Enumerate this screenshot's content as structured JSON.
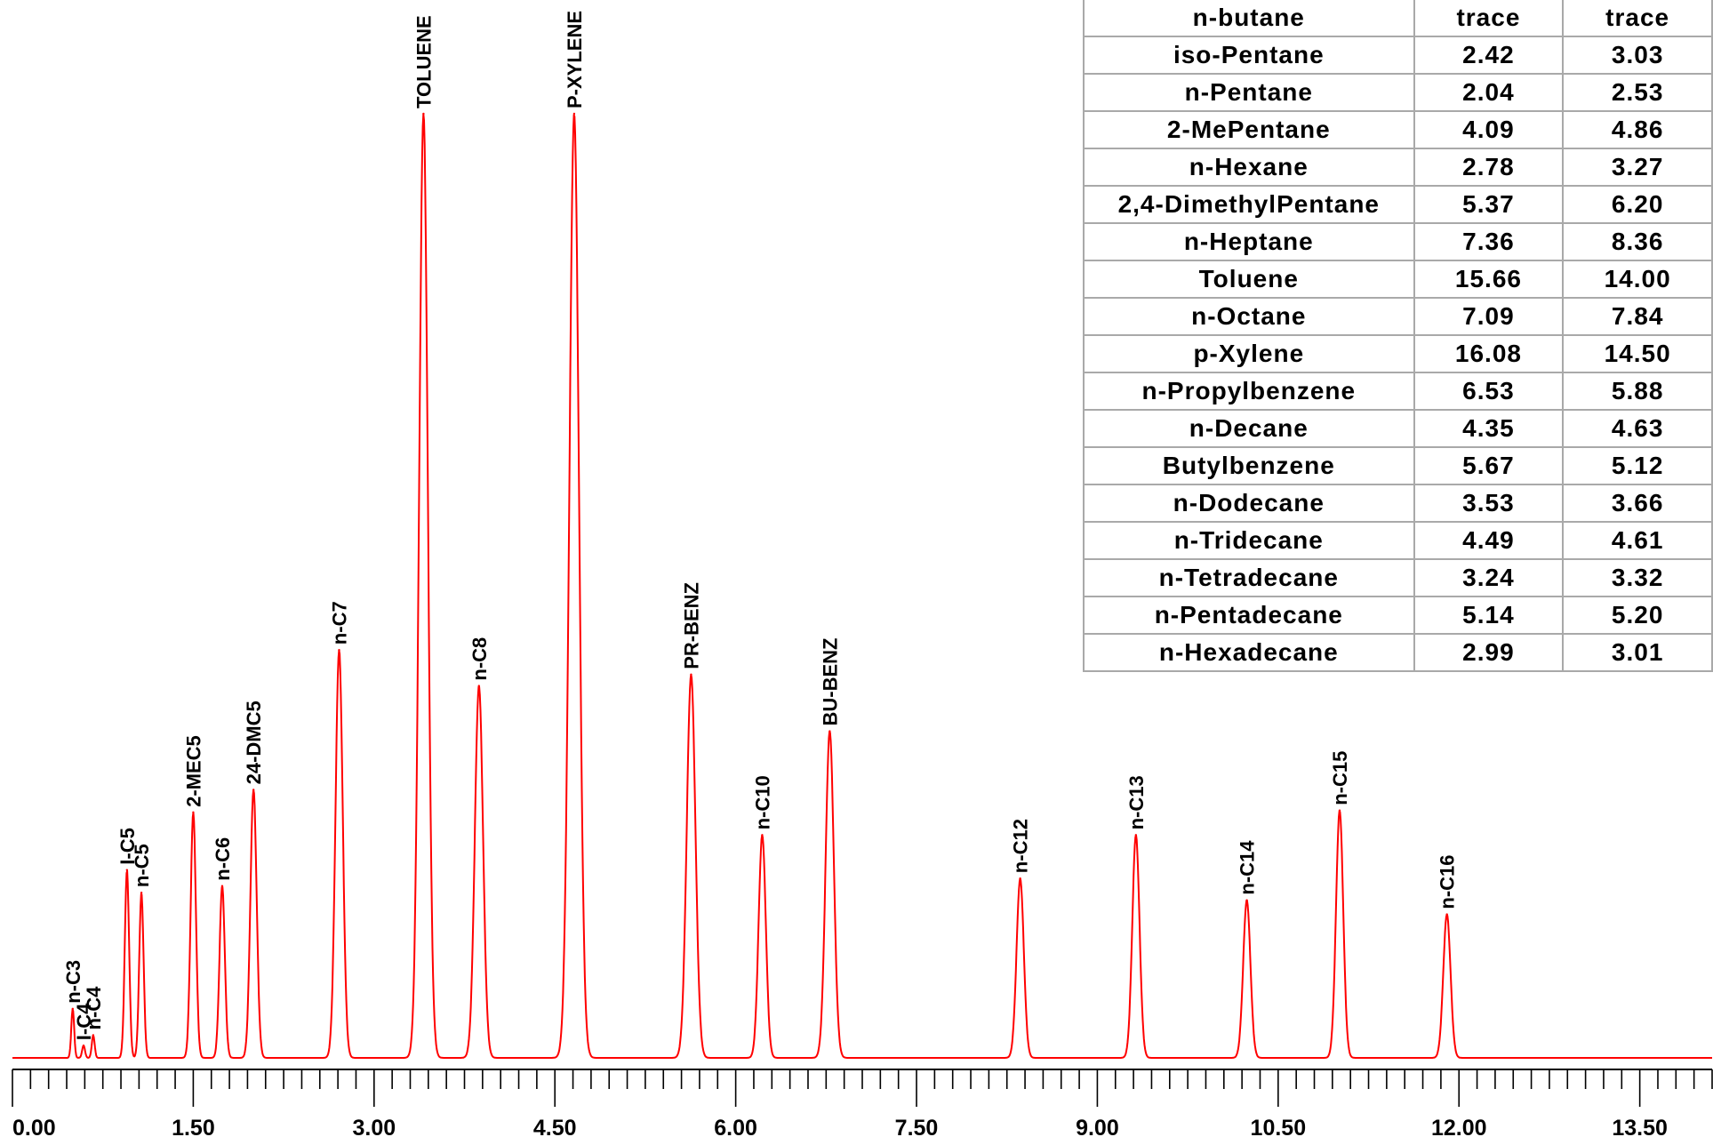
{
  "chart_data": {
    "type": "line",
    "xlim": [
      0,
      14.1
    ],
    "x_major_ticks": [
      0,
      1.5,
      3.0,
      4.5,
      6.0,
      7.5,
      9.0,
      10.5,
      12.0,
      13.5
    ],
    "x_tick_labels": [
      "0.00",
      "1.50",
      "3.00",
      "4.50",
      "6.00",
      "7.50",
      "9.00",
      "10.50",
      "12.00",
      "13.50"
    ],
    "x_minor_step": 0.15,
    "ylim": [
      0,
      100
    ],
    "line_color": "#ff0000",
    "peaks": [
      {
        "label": "n-C3",
        "x": 0.5,
        "height": 5.2,
        "width": 0.012
      },
      {
        "label": "I-C4",
        "x": 0.59,
        "height": 1.3,
        "width": 0.012
      },
      {
        "label": "n-C4",
        "x": 0.67,
        "height": 2.4,
        "width": 0.012
      },
      {
        "label": "I-C5",
        "x": 0.95,
        "height": 19.9,
        "width": 0.018
      },
      {
        "label": "n-C5",
        "x": 1.07,
        "height": 17.5,
        "width": 0.018
      },
      {
        "label": "2-MEC5",
        "x": 1.5,
        "height": 26.0,
        "width": 0.022
      },
      {
        "label": "n-C6",
        "x": 1.74,
        "height": 18.2,
        "width": 0.022
      },
      {
        "label": "24-DMC5",
        "x": 2.0,
        "height": 28.4,
        "width": 0.026
      },
      {
        "label": "n-C7",
        "x": 2.71,
        "height": 43.2,
        "width": 0.03
      },
      {
        "label": "TOLUENE",
        "x": 3.41,
        "height": 100,
        "width": 0.036
      },
      {
        "label": "n-C8",
        "x": 3.87,
        "height": 39.4,
        "width": 0.034
      },
      {
        "label": "P-XYLENE",
        "x": 4.66,
        "height": 100,
        "width": 0.04
      },
      {
        "label": "PR-BENZ",
        "x": 5.63,
        "height": 40.6,
        "width": 0.036
      },
      {
        "label": "n-C10",
        "x": 6.22,
        "height": 23.6,
        "width": 0.03
      },
      {
        "label": "BU-BENZ",
        "x": 6.78,
        "height": 34.6,
        "width": 0.034
      },
      {
        "label": "n-C12",
        "x": 8.36,
        "height": 19.0,
        "width": 0.03
      },
      {
        "label": "n-C13",
        "x": 9.32,
        "height": 23.6,
        "width": 0.03
      },
      {
        "label": "n-C14",
        "x": 10.24,
        "height": 16.7,
        "width": 0.03
      },
      {
        "label": "n-C15",
        "x": 11.01,
        "height": 26.2,
        "width": 0.03
      },
      {
        "label": "n-C16",
        "x": 11.9,
        "height": 15.2,
        "width": 0.03
      }
    ]
  },
  "composition_table": {
    "rows": [
      {
        "name": "n-butane",
        "v1": "trace",
        "v2": "trace"
      },
      {
        "name": "iso-Pentane",
        "v1": "2.42",
        "v2": "3.03"
      },
      {
        "name": "n-Pentane",
        "v1": "2.04",
        "v2": "2.53"
      },
      {
        "name": "2-MePentane",
        "v1": "4.09",
        "v2": "4.86"
      },
      {
        "name": "n-Hexane",
        "v1": "2.78",
        "v2": "3.27"
      },
      {
        "name": "2,4-DimethylPentane",
        "v1": "5.37",
        "v2": "6.20"
      },
      {
        "name": "n-Heptane",
        "v1": "7.36",
        "v2": "8.36"
      },
      {
        "name": "Toluene",
        "v1": "15.66",
        "v2": "14.00"
      },
      {
        "name": "n-Octane",
        "v1": "7.09",
        "v2": "7.84"
      },
      {
        "name": "p-Xylene",
        "v1": "16.08",
        "v2": "14.50"
      },
      {
        "name": "n-Propylbenzene",
        "v1": "6.53",
        "v2": "5.88"
      },
      {
        "name": "n-Decane",
        "v1": "4.35",
        "v2": "4.63"
      },
      {
        "name": "Butylbenzene",
        "v1": "5.67",
        "v2": "5.12"
      },
      {
        "name": "n-Dodecane",
        "v1": "3.53",
        "v2": "3.66"
      },
      {
        "name": "n-Tridecane",
        "v1": "4.49",
        "v2": "4.61"
      },
      {
        "name": "n-Tetradecane",
        "v1": "3.24",
        "v2": "3.32"
      },
      {
        "name": "n-Pentadecane",
        "v1": "5.14",
        "v2": "5.20"
      },
      {
        "name": "n-Hexadecane",
        "v1": "2.99",
        "v2": "3.01"
      }
    ]
  }
}
